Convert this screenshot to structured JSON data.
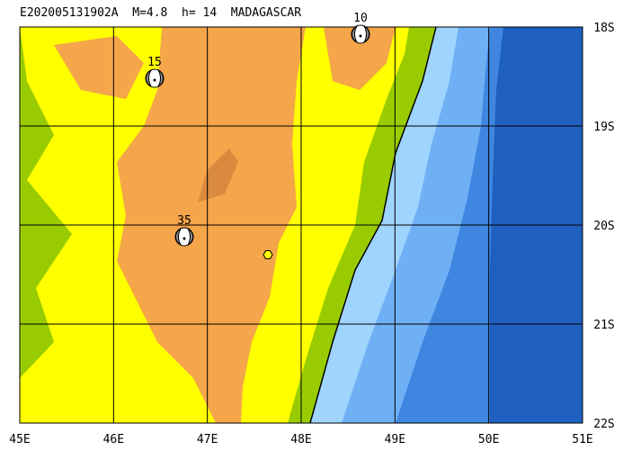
{
  "header": {
    "title": "E202005131902A  M=4.8  h= 14  MADAGASCAR"
  },
  "lon_labels": [
    "45E",
    "46E",
    "47E",
    "48E",
    "49E",
    "50E",
    "51E"
  ],
  "lat_labels": [
    "18S",
    "19S",
    "20S",
    "21S",
    "22S"
  ],
  "events": [
    {
      "label": "15"
    },
    {
      "label": "35"
    },
    {
      "label": "10"
    }
  ]
}
